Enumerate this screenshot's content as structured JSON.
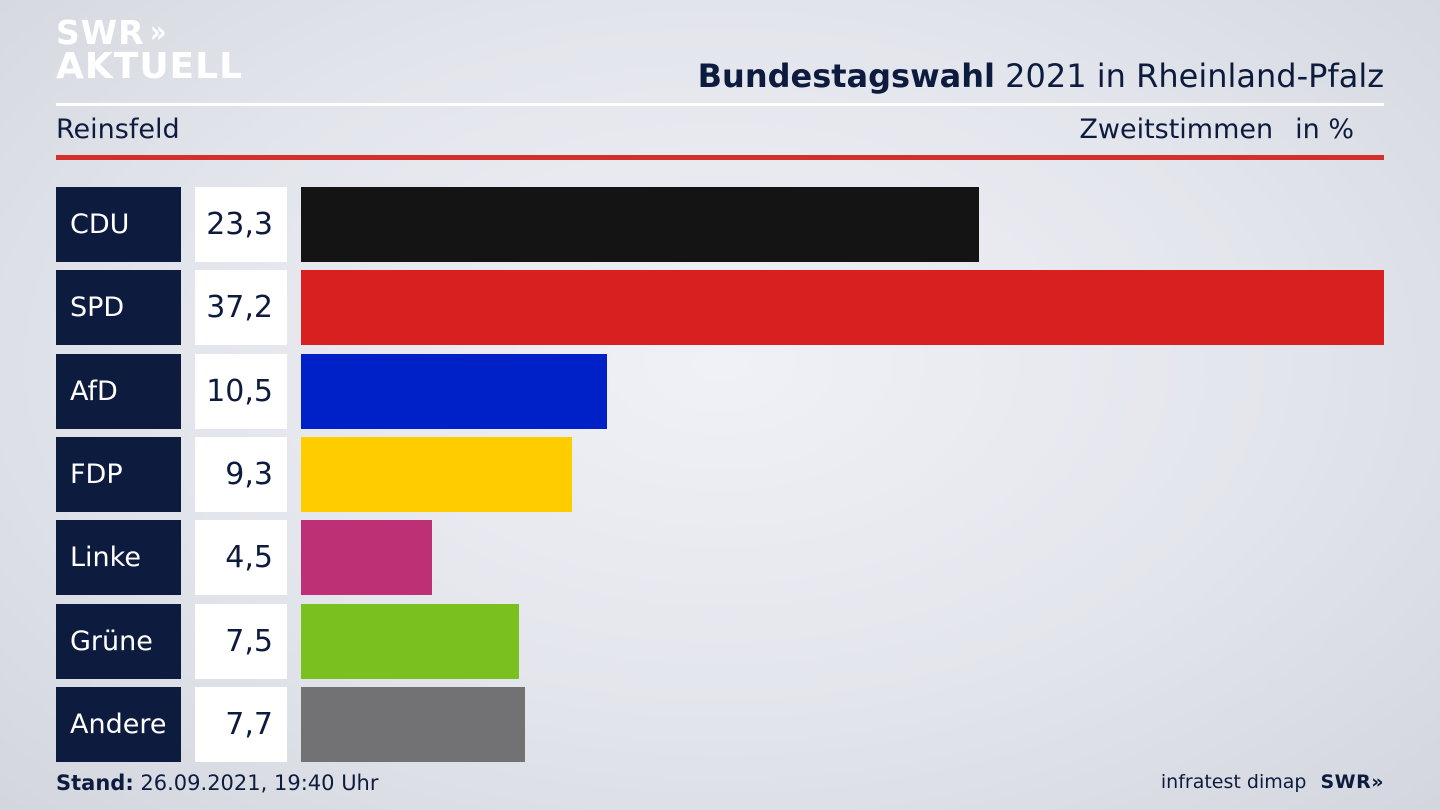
{
  "logo": {
    "line1": "SWR",
    "line1_mark": "»",
    "line2": "AKTUELL"
  },
  "header": {
    "title_bold": "Bundestagswahl",
    "title_rest": "2021 in Rheinland-Pfalz",
    "subtitle": "Reinsfeld",
    "measure": "Zweitstimmen",
    "unit": "in %"
  },
  "colors": {
    "navy": "#0d1b3e",
    "accent_red": "#d42f2a"
  },
  "chart_data": {
    "type": "bar",
    "orientation": "horizontal",
    "categories": [
      "CDU",
      "SPD",
      "AfD",
      "FDP",
      "Linke",
      "Grüne",
      "Andere"
    ],
    "values": [
      23.3,
      37.2,
      10.5,
      9.3,
      4.5,
      7.5,
      7.7
    ],
    "value_labels": [
      "23,3",
      "37,2",
      "10,5",
      "9,3",
      "4,5",
      "7,5",
      "7,7"
    ],
    "bar_colors": [
      "#141414",
      "#d82020",
      "#0021c8",
      "#ffcc00",
      "#be3075",
      "#7ac01e",
      "#727274"
    ],
    "xlim": [
      0,
      37.2
    ],
    "grid": false,
    "legend": "none"
  },
  "footer": {
    "stand_label": "Stand:",
    "stand_value": "26.09.2021, 19:40 Uhr",
    "source": "infratest dimap",
    "brand": "SWR",
    "brand_mark": "»"
  }
}
